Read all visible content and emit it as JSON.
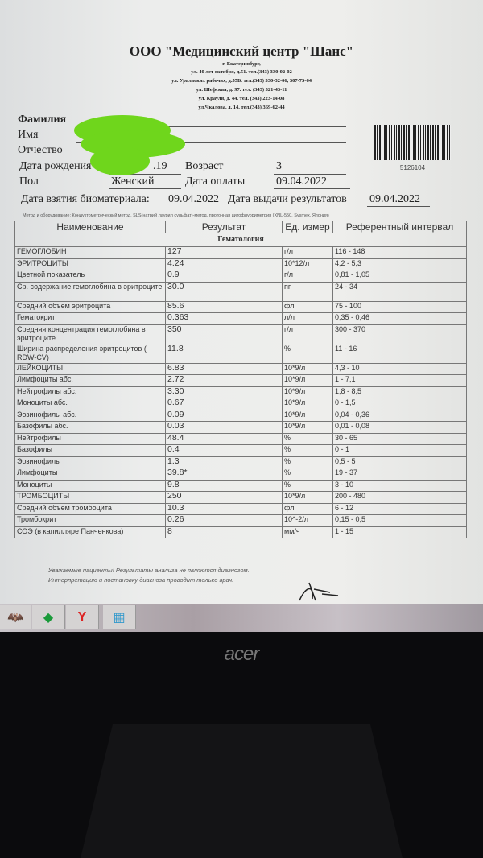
{
  "header": {
    "title": "ООО \"Медицинский центр \"Шанс\"",
    "address_lines": [
      "г. Екатеринбург,",
      "ул. 40 лет октября, д.51. тел.(343) 330-02-02",
      "ул. Уральских рабочих, д.55Б. тел.(343) 330-32-06, 307-75-64",
      "ул. Шефская, д. 97. тел. (343) 321-43-11",
      "ул. Крауля, д. 44. тел. (343) 223-14-08",
      "ул.Чкалова, д. 14. тел.(343) 369-62-44"
    ]
  },
  "patient": {
    "surname_label": "Фамилия",
    "name_label": "Имя",
    "patronymic_label": "Отчество",
    "dob_label": "Дата рождения",
    "dob_value": ".19",
    "age_label": "Возраст",
    "age_value": "3",
    "sex_label": "Пол",
    "sex_value": "Женский",
    "payment_label": "Дата оплаты",
    "payment_value": "09.04.2022",
    "sample_label": "Дата взятия биоматериала:",
    "sample_value": "09.04.2022",
    "issue_label": "Дата выдачи результатов",
    "issue_value": "09.04.2022",
    "barcode_number": "5126104"
  },
  "method": "Метод и оборудование: Кондуктометрический метод, SLS(натрий лаурил сульфат)-метод, проточная цитофлуориметрия (XNL-550, Sysmex, Япония)",
  "table": {
    "headers": [
      "Наименование",
      "Результат",
      "Ед. измер",
      "Референтный интервал"
    ],
    "section": "Гематология",
    "rows": [
      [
        "ГЕМОГЛОБИН",
        "127",
        "г/л",
        "116 - 148"
      ],
      [
        "ЭРИТРОЦИТЫ",
        "4.24",
        "10*12/л",
        "4,2 - 5,3"
      ],
      [
        "Цветной показатель",
        "0.9",
        "г/л",
        "0,81 - 1,05"
      ],
      [
        "Ср. содержание гемоглобина в эритроците",
        "30.0",
        "пг",
        "24 - 34"
      ],
      [
        "Средний объем эритроцита",
        "85.6",
        "фл",
        "75 - 100"
      ],
      [
        "Гематокрит",
        "0.363",
        "л/л",
        "0,35 - 0,46"
      ],
      [
        "Средняя концентрация гемоглобина в эритроците",
        "350",
        "г/л",
        "300 - 370"
      ],
      [
        "Ширина распределения эритроцитов ( RDW-CV)",
        "11.8",
        "%",
        "11 - 16"
      ],
      [
        "ЛЕЙКОЦИТЫ",
        "6.83",
        "10*9/л",
        "4,3 - 10"
      ],
      [
        "Лимфоциты абс.",
        "2.72",
        "10*9/л",
        "1 - 7,1"
      ],
      [
        "Нейтрофилы абс.",
        "3.30",
        "10*9/л",
        "1,8 - 8,5"
      ],
      [
        "Моноциты абс.",
        "0.67",
        "10*9/л",
        "0 - 1,5"
      ],
      [
        "Эозинофилы абс.",
        "0.09",
        "10*9/л",
        "0,04 - 0,36"
      ],
      [
        "Базофилы абс.",
        "0.03",
        "10*9/л",
        "0,01 - 0,08"
      ],
      [
        "Нейтрофилы",
        "48.4",
        "%",
        "30 - 65"
      ],
      [
        "Базофилы",
        "0.4",
        "%",
        "0 - 1"
      ],
      [
        "Эозинофилы",
        "1.3",
        "%",
        "0,5 - 5"
      ],
      [
        "Лимфоциты",
        "39.8*",
        "%",
        "19 - 37"
      ],
      [
        "Моноциты",
        "9.8",
        "%",
        "3 - 10"
      ],
      [
        "ТРОМБОЦИТЫ",
        "250",
        "10*9/л",
        "200 - 480"
      ],
      [
        "Средний объем тромбоцита",
        "10.3",
        "фл",
        "6 - 12"
      ],
      [
        "Тромбокрит",
        "0.26",
        "10^-2/л",
        "0,15 - 0,5"
      ],
      [
        "СОЭ (в капилляре Панченкова)",
        "8",
        "мм/ч",
        "1 - 15"
      ]
    ]
  },
  "note": [
    "Уважаемые пациенты! Результаты анализа не являются диагнозом.",
    "Интерпретацию и постановку диагноза проводит только врач."
  ],
  "taskbar": {
    "icons": [
      "batman-icon",
      "emerald-icon",
      "yandex-browser-icon",
      "app-grid-icon"
    ]
  },
  "monitor": {
    "brand": "acer"
  },
  "colors": {
    "redaction": "#6fd61c"
  }
}
